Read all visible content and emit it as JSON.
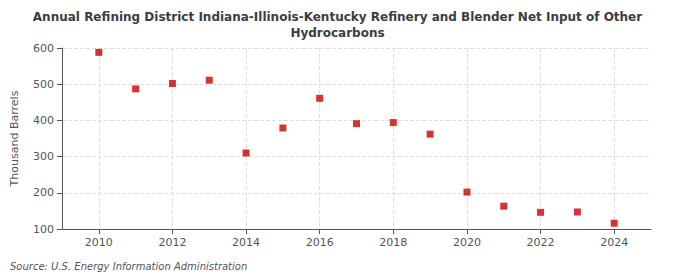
{
  "chart_data": {
    "type": "scatter",
    "title": "Annual Refining District Indiana-Illinois-Kentucky Refinery and Blender Net Input of Other\nHydrocarbons",
    "ylabel": "Thousand Barrels",
    "source": "Source: U.S. Energy Information Administration",
    "x": [
      2010,
      2011,
      2012,
      2013,
      2014,
      2015,
      2016,
      2017,
      2018,
      2019,
      2020,
      2021,
      2022,
      2023,
      2024
    ],
    "values": [
      588,
      487,
      502,
      511,
      310,
      379,
      461,
      391,
      394,
      362,
      202,
      163,
      146,
      147,
      116
    ],
    "color": "#cc0000",
    "marker": "square",
    "xlim": [
      2009.0,
      2025.0
    ],
    "xticks": [
      2010,
      2012,
      2014,
      2016,
      2018,
      2020,
      2022,
      2024
    ],
    "ylim": [
      100,
      600
    ],
    "yticks": [
      100,
      200,
      300,
      400,
      500,
      600
    ],
    "grid": true
  }
}
